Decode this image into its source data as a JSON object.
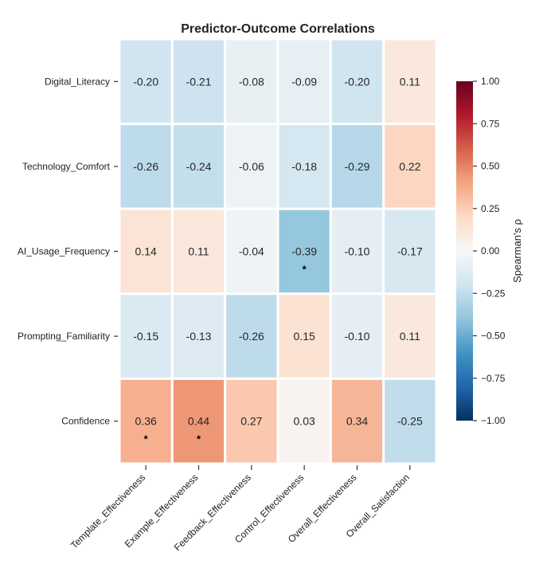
{
  "chart_data": {
    "type": "heatmap",
    "title": "Predictor-Outcome Correlations",
    "rows": [
      "Digital_Literacy",
      "Technology_Comfort",
      "AI_Usage_Frequency",
      "Prompting_Familiarity",
      "Confidence"
    ],
    "columns": [
      "Template_Effectiveness",
      "Example_Effectiveness",
      "Feedback_Effectiveness",
      "Control_Effectiveness",
      "Overall_Effectiveness",
      "Overall_Satisfaction"
    ],
    "values": [
      [
        -0.2,
        -0.21,
        -0.08,
        -0.09,
        -0.2,
        0.11
      ],
      [
        -0.26,
        -0.24,
        -0.06,
        -0.18,
        -0.29,
        0.22
      ],
      [
        0.14,
        0.11,
        -0.04,
        -0.39,
        -0.1,
        -0.17
      ],
      [
        -0.15,
        -0.13,
        -0.26,
        0.15,
        -0.1,
        0.11
      ],
      [
        0.36,
        0.44,
        0.27,
        0.03,
        0.34,
        -0.25
      ]
    ],
    "labels": [
      [
        "-0.20",
        "-0.21",
        "-0.08",
        "-0.09",
        "-0.20",
        "0.11"
      ],
      [
        "-0.26",
        "-0.24",
        "-0.06",
        "-0.18",
        "-0.29",
        "0.22"
      ],
      [
        "0.14",
        "0.11",
        "-0.04",
        "-0.39",
        "-0.10",
        "-0.17"
      ],
      [
        "-0.15",
        "-0.13",
        "-0.26",
        "0.15",
        "-0.10",
        "0.11"
      ],
      [
        "0.36",
        "0.44",
        "0.27",
        "0.03",
        "0.34",
        "-0.25"
      ]
    ],
    "significance": [
      [
        "",
        "",
        "",
        "",
        "",
        ""
      ],
      [
        "",
        "",
        "",
        "",
        "",
        ""
      ],
      [
        "",
        "",
        "",
        "*",
        "",
        ""
      ],
      [
        "",
        "",
        "",
        "",
        "",
        ""
      ],
      [
        "*",
        "*",
        "",
        "",
        "",
        ""
      ]
    ],
    "colorbar": {
      "label": "Spearman's ρ",
      "range": [
        -1.0,
        1.0
      ],
      "ticks": [
        1.0,
        0.75,
        0.5,
        0.25,
        0.0,
        -0.25,
        -0.5,
        -0.75,
        -1.0
      ],
      "tick_labels": [
        "1.00",
        "0.75",
        "0.50",
        "0.25",
        "0.00",
        "−0.25",
        "−0.50",
        "−0.75",
        "−1.00"
      ],
      "colormap": "RdBu_r"
    }
  }
}
